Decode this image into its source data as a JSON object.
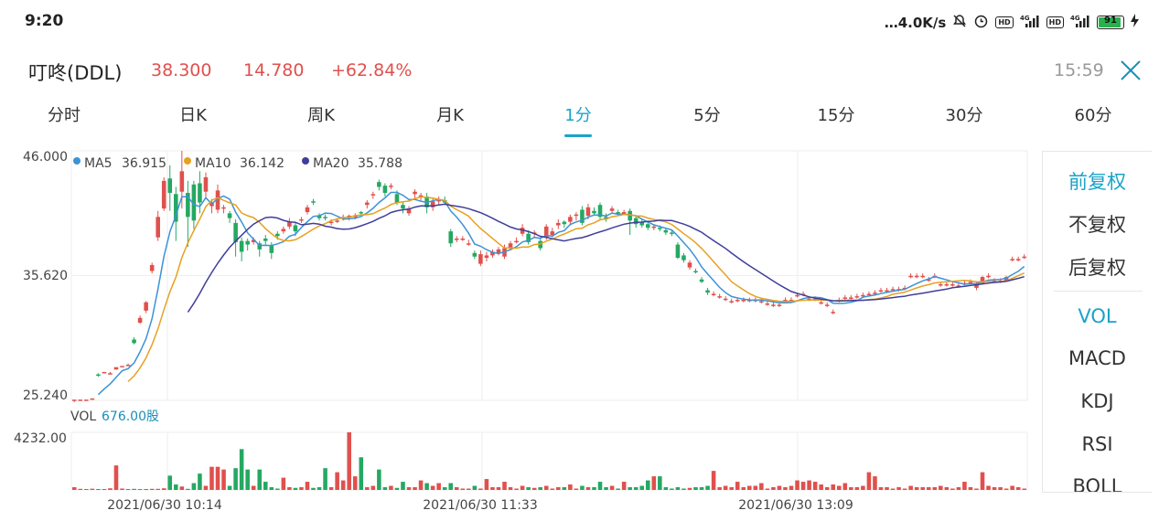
{
  "status_bar": {
    "time": "9:20",
    "speed": "…4.0K/s",
    "battery": "91"
  },
  "stock": {
    "name": "叮咚(DDL)",
    "price": "38.300",
    "change": "14.780",
    "change_pct": "+62.84%",
    "time": "15:59"
  },
  "tabs": [
    {
      "label": "分时"
    },
    {
      "label": "日K"
    },
    {
      "label": "周K"
    },
    {
      "label": "月K"
    },
    {
      "label": "1分"
    },
    {
      "label": "5分"
    },
    {
      "label": "15分"
    },
    {
      "label": "30分"
    },
    {
      "label": "60分"
    }
  ],
  "active_tab": "1分",
  "legend": {
    "ma5_label": "MA5",
    "ma5_value": "36.915",
    "ma10_label": "MA10",
    "ma10_value": "36.142",
    "ma20_label": "MA20",
    "ma20_value": "35.788"
  },
  "vol_label": "VOL",
  "vol_value": "676.00股",
  "side_options": [
    {
      "label": "前复权",
      "active": true
    },
    {
      "label": "不复权",
      "active": false
    },
    {
      "label": "后复权",
      "active": false
    },
    {
      "label": "VOL",
      "active": true
    },
    {
      "label": "MACD",
      "active": false
    },
    {
      "label": "KDJ",
      "active": false
    },
    {
      "label": "RSI",
      "active": false
    },
    {
      "label": "BOLL",
      "active": false
    }
  ],
  "colors": {
    "up": "#e0504d",
    "down": "#25a862",
    "ma5": "#3b93d6",
    "ma10": "#e8a020",
    "ma20": "#3f3e9b",
    "accent": "#1aa3c8"
  },
  "chart_data": {
    "type": "candlestick",
    "y_ticks": [
      "46.000",
      "35.620",
      "25.240"
    ],
    "ylim": [
      25.24,
      46.0
    ],
    "vol_tick": "4232.00",
    "vol_max": 4232,
    "x_ticks": [
      "2021/06/30 10:14",
      "2021/06/30 11:33",
      "2021/06/30 13:09"
    ],
    "candles": [
      [
        25.2,
        25.3,
        25.1,
        25.2
      ],
      [
        25.3,
        25.3,
        25.3,
        25.3
      ],
      [
        25.3,
        25.3,
        25.3,
        25.3
      ],
      [
        25.3,
        25.4,
        25.3,
        25.4
      ],
      [
        27.4,
        27.3,
        27.2,
        27.5
      ],
      [
        27.6,
        27.6,
        27.6,
        27.6
      ],
      [
        27.5,
        27.5,
        27.4,
        27.6
      ],
      [
        27.8,
        28.0,
        27.8,
        28.0
      ],
      [
        28.1,
        28.1,
        28.1,
        28.1
      ],
      [
        28.1,
        28.2,
        28.1,
        28.3
      ],
      [
        30.3,
        30.0,
        29.9,
        30.5
      ],
      [
        31.7,
        32.1,
        31.6,
        32.3
      ],
      [
        32.7,
        33.4,
        32.5,
        33.5
      ],
      [
        36.0,
        36.5,
        35.8,
        36.7
      ],
      [
        38.8,
        40.5,
        38.5,
        41.0
      ],
      [
        41.2,
        43.5,
        41.0,
        43.8
      ],
      [
        43.7,
        42.5,
        41.0,
        44.8
      ],
      [
        42.4,
        40.1,
        38.5,
        43.0
      ],
      [
        42.6,
        44.3,
        41.2,
        46.0
      ],
      [
        42.5,
        40.5,
        38.0,
        43.5
      ],
      [
        43.2,
        40.2,
        39.5,
        43.5
      ],
      [
        43.3,
        41.7,
        40.8,
        44.3
      ],
      [
        42.6,
        43.8,
        42.0,
        44.2
      ],
      [
        41.4,
        41.7,
        40.8,
        42.0
      ],
      [
        41.1,
        42.7,
        40.8,
        43.2
      ],
      [
        41.2,
        41.3,
        40.8,
        41.5
      ],
      [
        40.8,
        40.4,
        40.0,
        41.0
      ],
      [
        40.0,
        38.4,
        37.2,
        40.3
      ],
      [
        38.5,
        37.6,
        36.8,
        38.8
      ],
      [
        38.5,
        38.2,
        37.7,
        38.7
      ],
      [
        38.4,
        38.6,
        38.2,
        38.8
      ],
      [
        38.3,
        37.8,
        37.2,
        38.5
      ],
      [
        38.7,
        38.5,
        38.2,
        39.0
      ],
      [
        38.1,
        37.5,
        37.0,
        38.4
      ],
      [
        39.1,
        38.9,
        38.6,
        39.3
      ],
      [
        39.3,
        39.5,
        39.1,
        39.7
      ],
      [
        39.7,
        40.1,
        39.5,
        40.4
      ],
      [
        39.8,
        39.3,
        38.9,
        40.0
      ],
      [
        40.2,
        40.3,
        40.0,
        40.5
      ],
      [
        40.9,
        41.3,
        40.7,
        41.5
      ],
      [
        41.8,
        41.7,
        41.5,
        42.0
      ],
      [
        40.6,
        40.4,
        40.2,
        40.8
      ],
      [
        40.5,
        40.4,
        40.2,
        40.7
      ],
      [
        40.1,
        40.1,
        39.8,
        40.3
      ],
      [
        40.2,
        40.2,
        40.0,
        40.4
      ],
      [
        40.4,
        40.5,
        40.2,
        40.7
      ],
      [
        40.5,
        40.6,
        40.2,
        40.7
      ],
      [
        40.5,
        40.6,
        40.3,
        40.8
      ],
      [
        40.9,
        40.8,
        40.6,
        41.0
      ],
      [
        41.5,
        41.7,
        41.2,
        41.9
      ],
      [
        42.3,
        42.4,
        42.0,
        42.6
      ],
      [
        43.4,
        43.0,
        42.7,
        43.6
      ],
      [
        43.1,
        42.5,
        42.2,
        43.3
      ],
      [
        43.0,
        43.1,
        42.8,
        43.3
      ],
      [
        42.4,
        41.7,
        41.5,
        42.7
      ],
      [
        41.5,
        41.2,
        40.8,
        41.7
      ],
      [
        40.8,
        41.2,
        40.6,
        41.4
      ],
      [
        42.4,
        42.6,
        42.0,
        42.8
      ],
      [
        42.2,
        42.3,
        41.8,
        42.5
      ],
      [
        42.2,
        41.3,
        40.8,
        42.5
      ],
      [
        41.3,
        41.8,
        41.0,
        42.1
      ],
      [
        41.8,
        41.9,
        41.5,
        42.2
      ],
      [
        41.9,
        41.7,
        41.5,
        42.2
      ],
      [
        39.3,
        38.3,
        38.0,
        39.5
      ],
      [
        38.6,
        38.7,
        38.4,
        38.9
      ],
      [
        38.7,
        38.7,
        38.5,
        38.9
      ],
      [
        38.3,
        38.3,
        38.1,
        38.6
      ],
      [
        37.5,
        37.2,
        37.0,
        37.7
      ],
      [
        36.6,
        37.4,
        36.4,
        37.7
      ],
      [
        37.1,
        37.3,
        36.8,
        37.6
      ],
      [
        37.3,
        37.6,
        37.1,
        37.8
      ],
      [
        37.5,
        37.8,
        37.3,
        38.0
      ],
      [
        37.2,
        37.9,
        37.0,
        38.2
      ],
      [
        37.9,
        38.3,
        37.7,
        38.5
      ],
      [
        38.5,
        38.5,
        38.3,
        38.8
      ],
      [
        39.1,
        39.6,
        38.9,
        39.9
      ],
      [
        39.1,
        38.4,
        38.2,
        39.4
      ],
      [
        39.1,
        39.2,
        38.8,
        39.4
      ],
      [
        38.5,
        37.9,
        37.7,
        38.8
      ],
      [
        38.8,
        39.7,
        38.6,
        39.9
      ],
      [
        39.0,
        39.3,
        38.8,
        39.6
      ],
      [
        39.8,
        40.0,
        39.5,
        40.3
      ],
      [
        40.1,
        39.9,
        39.6,
        40.2
      ],
      [
        40.1,
        40.5,
        39.8,
        40.7
      ],
      [
        40.6,
        40.7,
        40.2,
        40.9
      ],
      [
        41.1,
        40.0,
        39.8,
        41.4
      ],
      [
        40.6,
        41.3,
        40.3,
        41.6
      ],
      [
        41.0,
        40.8,
        40.6,
        41.3
      ],
      [
        41.5,
        40.5,
        40.2,
        41.7
      ],
      [
        40.5,
        40.3,
        40.1,
        40.8
      ],
      [
        41.0,
        41.2,
        40.8,
        41.4
      ],
      [
        40.9,
        40.8,
        40.6,
        41.1
      ],
      [
        40.9,
        40.9,
        40.7,
        41.1
      ],
      [
        41.0,
        40.2,
        39.0,
        41.2
      ],
      [
        40.4,
        39.9,
        39.6,
        40.6
      ],
      [
        40.1,
        39.8,
        39.6,
        40.3
      ],
      [
        39.9,
        39.6,
        39.4,
        40.1
      ],
      [
        39.6,
        39.7,
        39.4,
        39.9
      ],
      [
        39.6,
        39.5,
        39.3,
        39.8
      ],
      [
        39.4,
        39.2,
        39.0,
        39.6
      ],
      [
        39.2,
        39.1,
        38.9,
        39.4
      ],
      [
        38.2,
        37.1,
        37.0,
        38.4
      ],
      [
        37.3,
        36.9,
        36.7,
        37.5
      ],
      [
        36.3,
        36.7,
        36.1,
        36.9
      ],
      [
        36.0,
        35.9,
        35.8,
        36.2
      ],
      [
        35.3,
        35.1,
        35.0,
        35.5
      ],
      [
        34.4,
        34.2,
        34.0,
        34.6
      ],
      [
        34.1,
        34.1,
        33.9,
        34.3
      ],
      [
        33.9,
        33.9,
        33.7,
        34.1
      ],
      [
        33.7,
        33.7,
        33.5,
        33.9
      ],
      [
        33.5,
        33.5,
        33.3,
        33.7
      ],
      [
        33.6,
        33.6,
        33.4,
        33.8
      ],
      [
        33.6,
        33.6,
        33.4,
        33.8
      ],
      [
        33.6,
        33.6,
        33.4,
        33.8
      ],
      [
        33.6,
        33.6,
        33.4,
        33.8
      ],
      [
        33.5,
        33.5,
        33.3,
        33.7
      ],
      [
        33.3,
        33.3,
        33.1,
        33.5
      ],
      [
        33.2,
        33.2,
        33.0,
        33.4
      ],
      [
        33.2,
        33.2,
        33.0,
        33.4
      ],
      [
        33.6,
        33.6,
        33.4,
        33.8
      ],
      [
        33.6,
        33.6,
        33.4,
        33.8
      ],
      [
        34.0,
        34.0,
        33.8,
        34.2
      ],
      [
        34.1,
        34.1,
        33.9,
        34.3
      ],
      [
        33.7,
        33.7,
        33.5,
        33.9
      ],
      [
        33.7,
        33.7,
        33.5,
        33.9
      ],
      [
        33.4,
        33.4,
        33.2,
        33.6
      ],
      [
        33.2,
        33.2,
        33.0,
        33.4
      ],
      [
        32.6,
        32.6,
        32.4,
        32.8
      ],
      [
        33.6,
        33.6,
        33.4,
        33.8
      ],
      [
        33.8,
        33.8,
        33.6,
        34.0
      ],
      [
        33.8,
        33.8,
        33.6,
        34.0
      ],
      [
        33.9,
        33.9,
        33.7,
        34.1
      ],
      [
        34.0,
        34.0,
        33.8,
        34.2
      ],
      [
        34.1,
        34.1,
        33.9,
        34.3
      ],
      [
        34.2,
        34.2,
        34.0,
        34.4
      ],
      [
        34.4,
        34.4,
        34.2,
        34.6
      ],
      [
        34.4,
        34.4,
        34.2,
        34.6
      ],
      [
        34.5,
        34.5,
        34.3,
        34.7
      ],
      [
        34.5,
        34.5,
        34.3,
        34.7
      ],
      [
        34.6,
        34.6,
        34.4,
        34.8
      ],
      [
        35.6,
        35.6,
        35.4,
        35.8
      ],
      [
        35.6,
        35.6,
        35.4,
        35.8
      ],
      [
        35.6,
        35.6,
        35.4,
        35.8
      ],
      [
        35.3,
        35.3,
        35.1,
        35.5
      ],
      [
        35.6,
        35.6,
        35.4,
        35.8
      ],
      [
        34.9,
        34.9,
        34.7,
        35.1
      ],
      [
        34.9,
        34.9,
        34.7,
        35.1
      ],
      [
        34.9,
        34.9,
        34.7,
        35.1
      ],
      [
        34.7,
        34.8,
        34.6,
        35.0
      ],
      [
        35.0,
        35.0,
        34.8,
        35.2
      ],
      [
        35.1,
        35.1,
        34.9,
        35.3
      ],
      [
        34.6,
        35.0,
        34.4,
        35.1
      ],
      [
        35.0,
        35.5,
        34.9,
        35.6
      ],
      [
        35.6,
        35.6,
        35.4,
        35.8
      ],
      [
        35.2,
        35.2,
        35.0,
        35.4
      ],
      [
        35.2,
        35.2,
        35.0,
        35.4
      ],
      [
        35.2,
        35.5,
        35.1,
        35.6
      ],
      [
        37.0,
        37.0,
        36.8,
        37.2
      ],
      [
        37.0,
        37.0,
        36.8,
        37.2
      ],
      [
        37.2,
        37.2,
        37.0,
        37.4
      ]
    ],
    "volumes": [
      200,
      80,
      60,
      90,
      60,
      60,
      120,
      1800,
      100,
      60,
      80,
      60,
      60,
      80,
      80,
      120,
      1050,
      400,
      250,
      80,
      500,
      1200,
      300,
      1700,
      1700,
      1500,
      300,
      1600,
      3000,
      1500,
      300,
      1500,
      600,
      200,
      100,
      900,
      200,
      150,
      200,
      600,
      150,
      200,
      1600,
      200,
      1300,
      700,
      4232,
      1000,
      2400,
      200,
      300,
      1500,
      200,
      300,
      150,
      600,
      200,
      200,
      700,
      500,
      300,
      500,
      200,
      500,
      200,
      100,
      100,
      300,
      100,
      800,
      200,
      200,
      600,
      200,
      100,
      300,
      200,
      150,
      200,
      300,
      100,
      200,
      200,
      400,
      100,
      300,
      200,
      200,
      600,
      200,
      300,
      100,
      600,
      200,
      200,
      300,
      700,
      1000,
      1000,
      200,
      100,
      200,
      100,
      150,
      200,
      200,
      300,
      1400,
      200,
      300,
      200,
      600,
      200,
      300,
      300,
      500,
      100,
      200,
      300,
      200,
      300,
      700,
      600,
      700,
      600,
      400,
      200,
      400,
      300,
      500,
      200,
      200,
      300,
      1300,
      1000,
      200,
      200,
      100,
      200,
      100,
      300,
      200,
      200,
      200,
      200,
      300,
      200,
      100,
      200,
      600,
      200,
      100,
      1300,
      300,
      200,
      200,
      100,
      300,
      200,
      100,
      500,
      150,
      100,
      400,
      150,
      400,
      150,
      150
    ]
  }
}
